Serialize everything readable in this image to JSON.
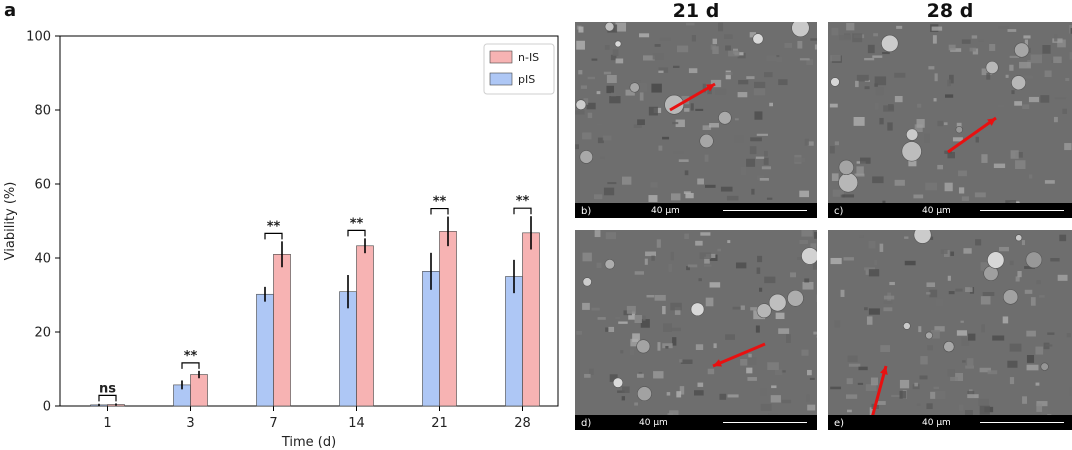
{
  "chart_data": {
    "type": "bar",
    "panel_label": "a",
    "categories": [
      "1",
      "3",
      "7",
      "14",
      "21",
      "28"
    ],
    "xlabel": "Time (d)",
    "ylabel": "Viability (%)",
    "ylim": [
      0,
      100
    ],
    "yticks": [
      "0",
      "20",
      "40",
      "60",
      "80",
      "100"
    ],
    "series": [
      {
        "name": "pIS",
        "color": "#aec7f5",
        "values": [
          0.3,
          5.7,
          30.2,
          30.9,
          36.4,
          35.0
        ],
        "errors": [
          0.3,
          1.2,
          2.0,
          4.5,
          5.0,
          4.5
        ]
      },
      {
        "name": "n-IS",
        "color": "#f7b3b3",
        "values": [
          0.4,
          8.5,
          41.0,
          43.3,
          47.2,
          46.8
        ],
        "errors": [
          0.3,
          1.0,
          3.5,
          2.0,
          4.0,
          4.5
        ]
      }
    ],
    "significance": [
      "ns",
      "**",
      "**",
      "**",
      "**",
      "**"
    ],
    "legend_position": "top-right"
  },
  "micrographs": {
    "column_titles": [
      "21 d",
      "28 d"
    ],
    "panels": [
      {
        "label": "b)",
        "scale": "40 µm"
      },
      {
        "label": "c)",
        "scale": "40 µm"
      },
      {
        "label": "d)",
        "scale": "40 µm"
      },
      {
        "label": "e)",
        "scale": "40 µm"
      }
    ],
    "arrow_color": "#e81010"
  }
}
